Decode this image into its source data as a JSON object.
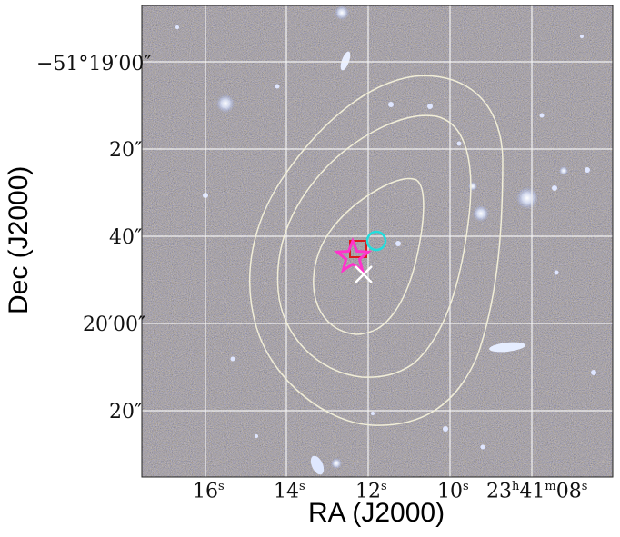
{
  "figure": {
    "xlabel": "RA (J2000)",
    "ylabel": "Dec (J2000)"
  },
  "ra_ticks": [
    {
      "label": "16",
      "unit": "s"
    },
    {
      "label": "14",
      "unit": "s"
    },
    {
      "label": "12",
      "unit": "s"
    },
    {
      "label": "10",
      "unit": "s"
    },
    {
      "label": "23",
      "unit": "h",
      "label2": "41",
      "unit2": "m",
      "label3": "08",
      "unit3": "s"
    }
  ],
  "dec_ticks": [
    "−51°19′00″",
    "20″",
    "40″",
    "20′00″",
    "20″"
  ],
  "markers": {
    "star": {
      "color": "#ff33cc",
      "shape": "star"
    },
    "square": {
      "color": "#d81b1b",
      "shape": "square"
    },
    "circle": {
      "color": "#22dddd",
      "shape": "circle"
    },
    "cross": {
      "color": "#ffffff",
      "shape": "x-cross"
    }
  },
  "contours": {
    "color": "#f1eed8",
    "levels": 3
  }
}
